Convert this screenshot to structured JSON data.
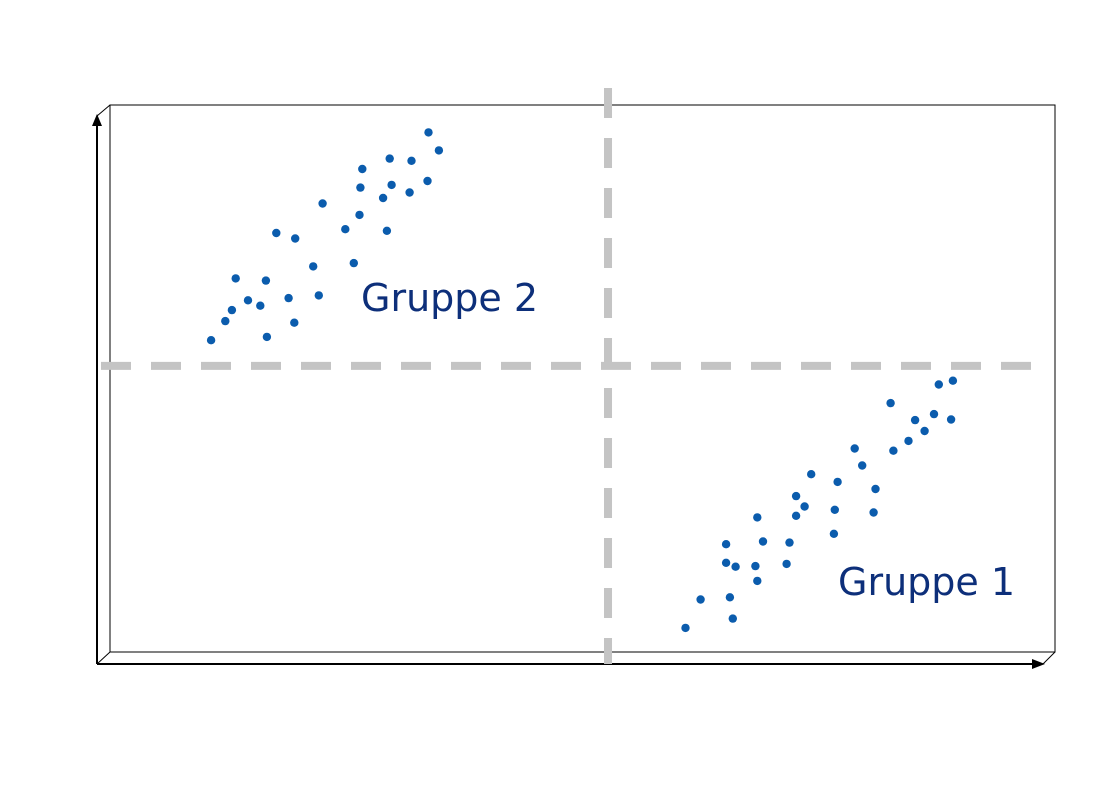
{
  "chart_data": {
    "type": "scatter",
    "title": "",
    "xlabel": "",
    "ylabel": "",
    "grid": false,
    "xlim": [
      0,
      100
    ],
    "ylim": [
      0,
      100
    ],
    "quadrant_divider": {
      "x": 52.7,
      "y": 52.3
    },
    "series": [
      {
        "name": "Gruppe 1",
        "points": [
          [
            60.9,
            4.4
          ],
          [
            62.5,
            9.6
          ],
          [
            65.6,
            10.0
          ],
          [
            65.9,
            6.1
          ],
          [
            66.2,
            15.6
          ],
          [
            65.2,
            16.3
          ],
          [
            65.2,
            19.7
          ],
          [
            68.3,
            15.7
          ],
          [
            68.5,
            13.0
          ],
          [
            69.1,
            20.2
          ],
          [
            68.5,
            24.6
          ],
          [
            71.6,
            16.1
          ],
          [
            71.9,
            20.0
          ],
          [
            72.6,
            24.9
          ],
          [
            72.6,
            28.5
          ],
          [
            73.5,
            26.6
          ],
          [
            74.2,
            32.5
          ],
          [
            76.6,
            21.6
          ],
          [
            76.7,
            26.0
          ],
          [
            77.0,
            31.1
          ],
          [
            78.8,
            37.2
          ],
          [
            79.6,
            34.1
          ],
          [
            80.8,
            25.5
          ],
          [
            81.0,
            29.8
          ],
          [
            82.6,
            45.5
          ],
          [
            82.9,
            36.8
          ],
          [
            84.5,
            38.6
          ],
          [
            85.2,
            42.4
          ],
          [
            86.2,
            40.4
          ],
          [
            87.2,
            43.5
          ],
          [
            87.7,
            48.9
          ],
          [
            89.2,
            49.6
          ],
          [
            89.0,
            42.5
          ]
        ]
      },
      {
        "name": "Gruppe 2",
        "points": [
          [
            10.7,
            57.0
          ],
          [
            12.2,
            60.5
          ],
          [
            12.9,
            62.5
          ],
          [
            13.3,
            68.3
          ],
          [
            14.6,
            64.3
          ],
          [
            15.9,
            63.3
          ],
          [
            16.6,
            57.6
          ],
          [
            16.5,
            67.9
          ],
          [
            17.6,
            76.6
          ],
          [
            18.9,
            64.7
          ],
          [
            19.5,
            60.2
          ],
          [
            19.6,
            75.6
          ],
          [
            21.5,
            70.5
          ],
          [
            22.5,
            82.0
          ],
          [
            22.1,
            65.2
          ],
          [
            24.9,
            77.3
          ],
          [
            25.8,
            71.1
          ],
          [
            26.4,
            79.9
          ],
          [
            26.5,
            84.9
          ],
          [
            26.7,
            88.3
          ],
          [
            28.9,
            83.0
          ],
          [
            29.3,
            77.0
          ],
          [
            29.6,
            90.2
          ],
          [
            29.8,
            85.4
          ],
          [
            31.7,
            84.0
          ],
          [
            31.9,
            89.8
          ],
          [
            33.6,
            86.1
          ],
          [
            33.7,
            95.0
          ],
          [
            34.8,
            91.7
          ]
        ]
      }
    ],
    "colors": {
      "points": "#0b5cad",
      "labels": "#0d2f7a",
      "divider": "#c4c4c4",
      "axis": "#000000"
    },
    "labels": [
      "Gruppe 1",
      "Gruppe 2"
    ]
  }
}
